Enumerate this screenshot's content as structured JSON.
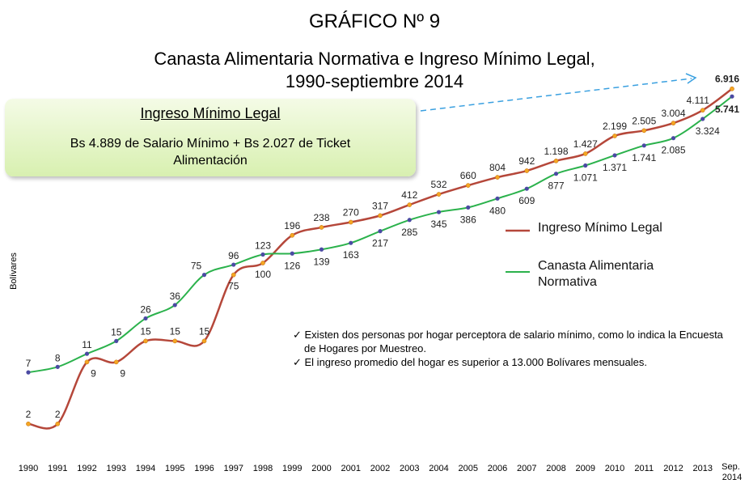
{
  "chart_data": {
    "type": "line",
    "title": "GRÁFICO Nº 9",
    "subtitle": [
      "Canasta Alimentaria Normativa e Ingreso Mínimo Legal,",
      "1990-septiembre 2014"
    ],
    "y_label": "Bolívares",
    "log_scale": true,
    "ylim": [
      1,
      10000
    ],
    "categories": [
      "1990",
      "1991",
      "1992",
      "1993",
      "1994",
      "1995",
      "1996",
      "1997",
      "1998",
      "1999",
      "2000",
      "2001",
      "2002",
      "2003",
      "2004",
      "2005",
      "2006",
      "2007",
      "2008",
      "2009",
      "2010",
      "2011",
      "2012",
      "2013",
      "Sep. 2014"
    ],
    "series": [
      {
        "name": "Ingreso Mínimo Legal",
        "color": "#b5473a",
        "marker_color": "#f5a623",
        "values": [
          2,
          2,
          9,
          9,
          15,
          15,
          15,
          75,
          100,
          196,
          238,
          270,
          317,
          412,
          532,
          660,
          804,
          942,
          1198,
          1427,
          2199,
          2505,
          3004,
          4111,
          6916
        ],
        "value_labels": [
          "2",
          "2",
          "9",
          "9",
          "15",
          "15",
          "15",
          "75",
          "100",
          "196",
          "238",
          "270",
          "317",
          "412",
          "532",
          "660",
          "804",
          "942",
          "1.198",
          "1.427",
          "2.199",
          "2.505",
          "3.004",
          "4.111",
          "6.916"
        ]
      },
      {
        "name": "Canasta Alimentaria Normativa",
        "color": "#2bb24c",
        "marker_color": "#4b4aa3",
        "values": [
          7,
          8,
          11,
          15,
          26,
          36,
          75,
          96,
          123,
          126,
          139,
          163,
          217,
          285,
          345,
          386,
          480,
          609,
          877,
          1071,
          1371,
          1741,
          2085,
          3324,
          5741
        ],
        "value_labels": [
          "7",
          "8",
          "11",
          "15",
          "26",
          "36",
          "75",
          "96",
          "123",
          "126",
          "139",
          "163",
          "217",
          "285",
          "345",
          "386",
          "480",
          "609",
          "877",
          "1.071",
          "1.371",
          "1.741",
          "2.085",
          "3.324",
          "5.741"
        ]
      }
    ],
    "callout": {
      "heading": "Ingreso Mínimo Legal",
      "text": "Bs 4.889 de Salario Mínimo + Bs 2.027 de Ticket Alimentación"
    },
    "notes": [
      "Existen dos personas por hogar perceptora de salario mínimo, como lo indica la Encuesta de Hogares por Muestreo.",
      "El ingreso promedio del hogar es superior a 13.000 Bolívares mensuales."
    ]
  }
}
